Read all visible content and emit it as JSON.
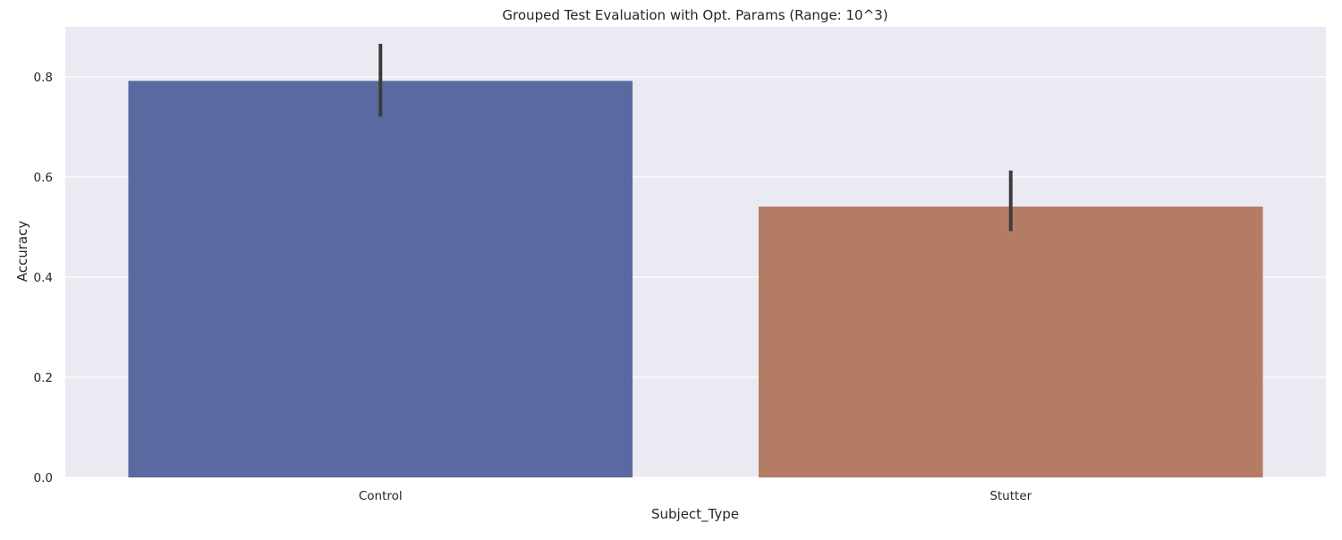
{
  "chart_data": {
    "type": "bar",
    "title": "Grouped Test Evaluation with Opt. Params (Range: 10^3)",
    "xlabel": "Subject_Type",
    "ylabel": "Accuracy",
    "categories": [
      "Control",
      "Stutter"
    ],
    "values": [
      0.792,
      0.541
    ],
    "error_low": [
      0.721,
      0.492
    ],
    "error_high": [
      0.866,
      0.613
    ],
    "colors": [
      "#5a6aa0",
      "#b57c65"
    ],
    "ylim": [
      0,
      0.9
    ],
    "yticks": [
      "0.0",
      "0.2",
      "0.4",
      "0.6",
      "0.8"
    ],
    "grid": true,
    "legend": "none",
    "background": "#eaeaf2"
  }
}
